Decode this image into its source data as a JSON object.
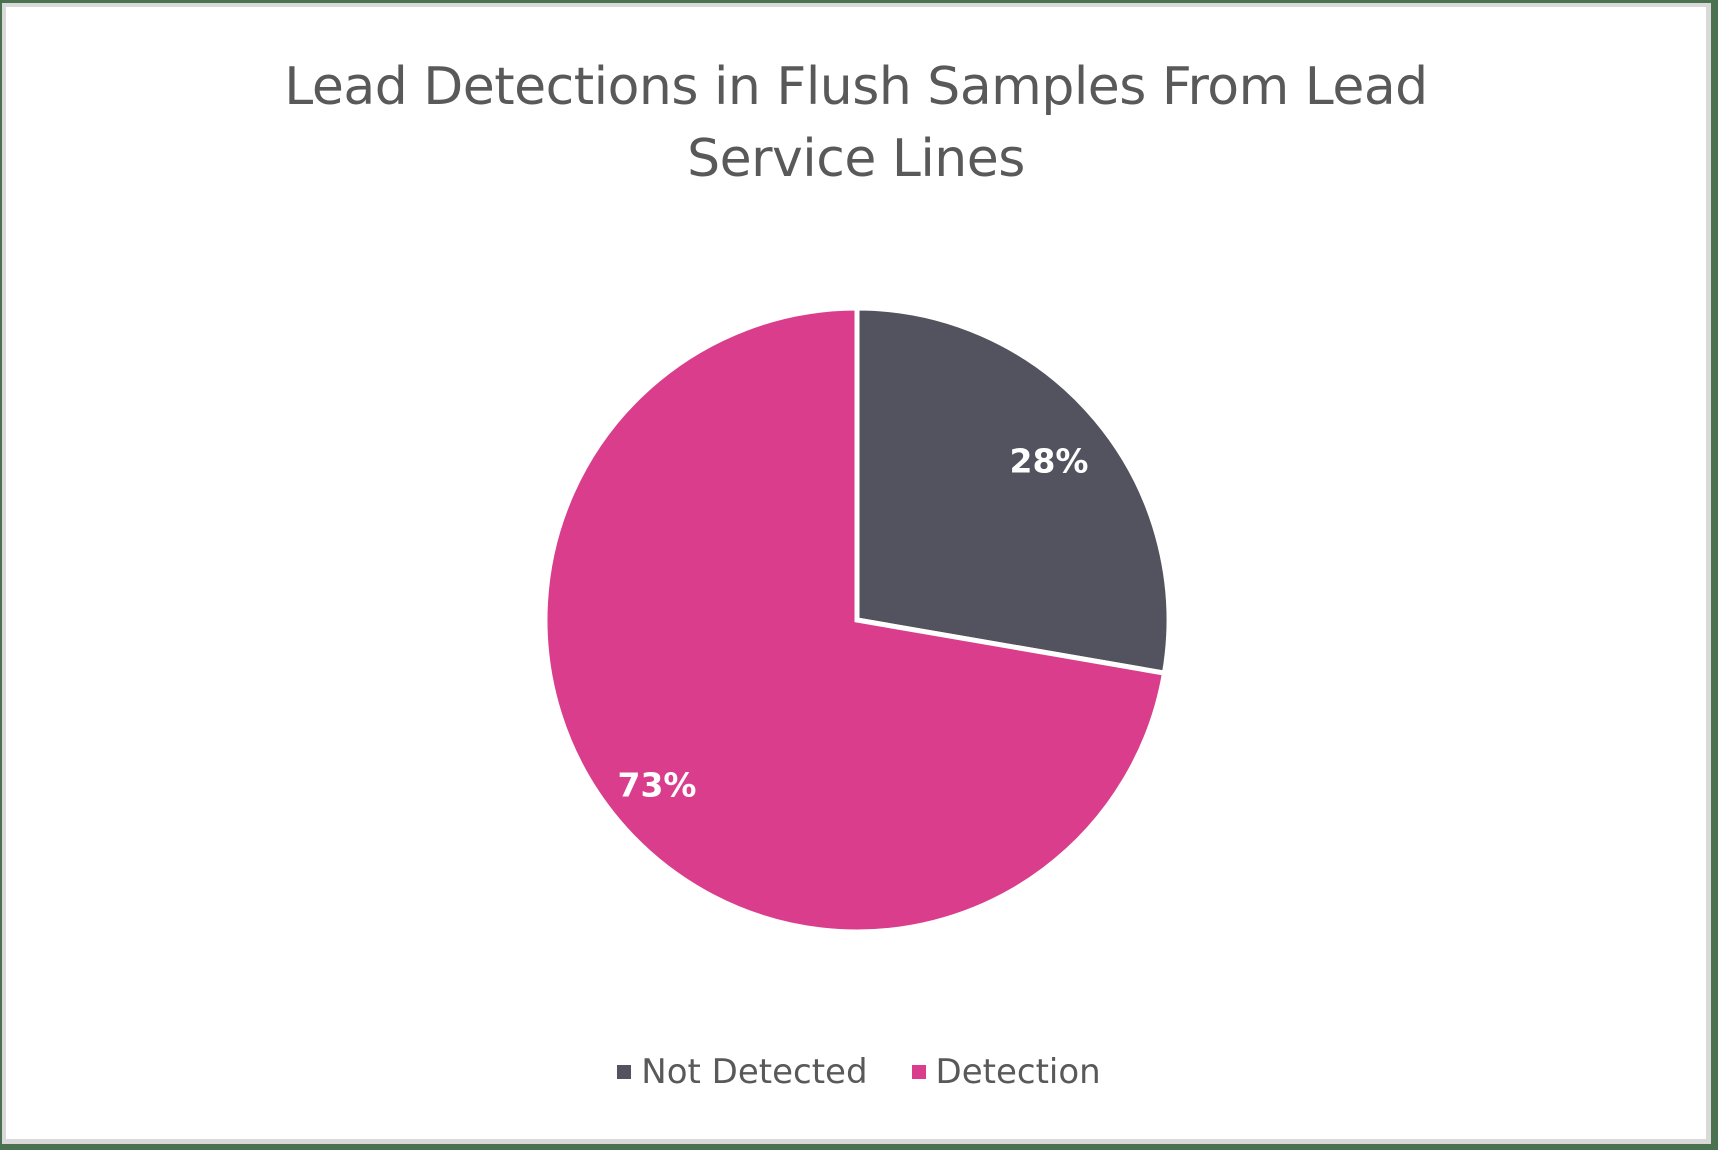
{
  "chart_data": {
    "type": "pie",
    "title": "Lead Detections in Flush Samples From Lead Service Lines",
    "categories": [
      "Not Detected",
      "Detection"
    ],
    "values": [
      28,
      73
    ],
    "value_labels": [
      "28%",
      "73%"
    ],
    "colors": [
      "#52535f",
      "#d93d8b"
    ],
    "legend_position": "bottom",
    "start_angle_deg": 0,
    "direction": "clockwise"
  },
  "title_lines": [
    "Lead Detections in Flush Samples From Lead",
    "Service Lines"
  ],
  "legend": [
    {
      "label": "Not Detected",
      "color": "#52535f"
    },
    {
      "label": "Detection",
      "color": "#d93d8b"
    }
  ],
  "labels": {
    "not_detected": "28%",
    "detection": "73%"
  }
}
